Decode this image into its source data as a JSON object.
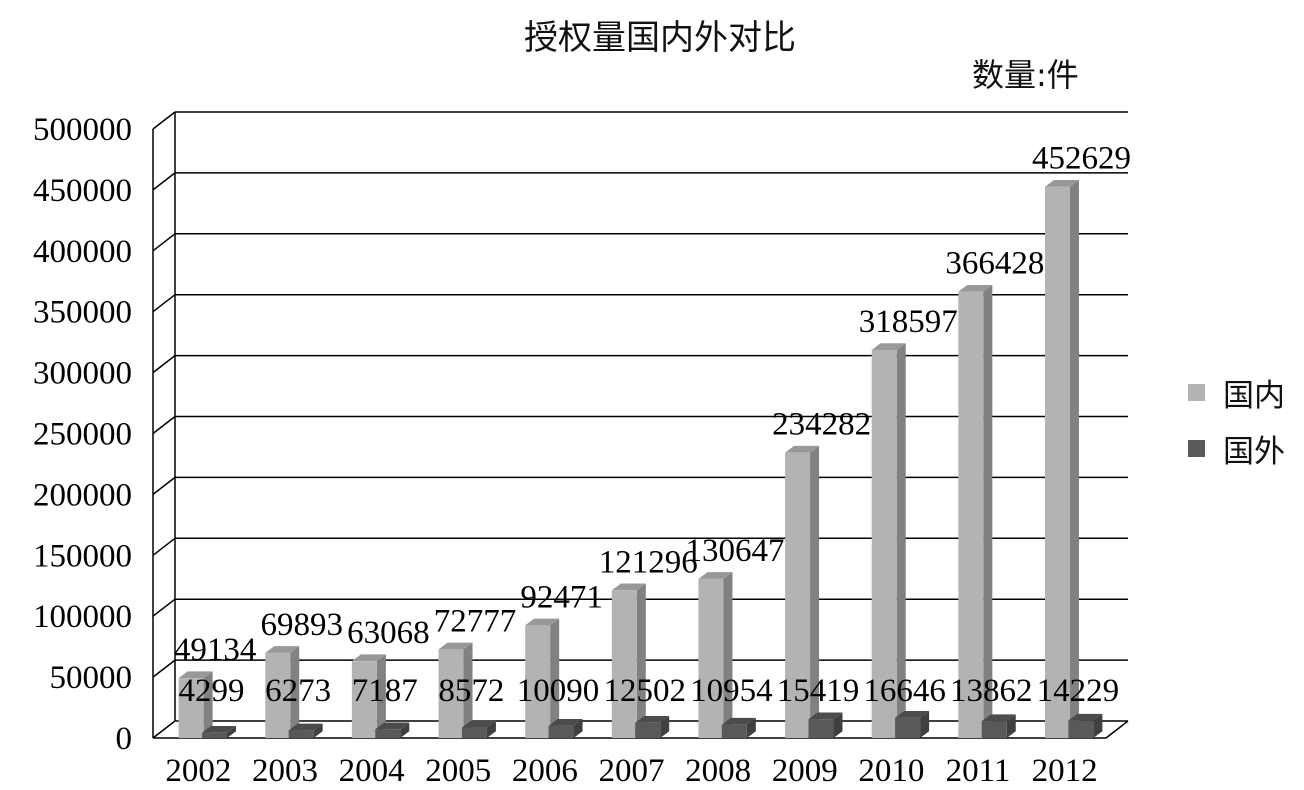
{
  "chart_data": {
    "type": "bar",
    "title": "授权量国内外对比",
    "unit_label": "数量:件",
    "categories": [
      "2002",
      "2003",
      "2004",
      "2005",
      "2006",
      "2007",
      "2008",
      "2009",
      "2010",
      "2011",
      "2012"
    ],
    "series": [
      {
        "name": "国内",
        "values": [
          49134,
          69893,
          63068,
          72777,
          92471,
          121296,
          130647,
          234282,
          318597,
          366428,
          452629
        ],
        "color": "#b3b3b3"
      },
      {
        "name": "国外",
        "values": [
          4299,
          6273,
          7187,
          8572,
          10090,
          12502,
          10954,
          15419,
          16646,
          13862,
          14229
        ],
        "color": "#595959"
      }
    ],
    "ylim": [
      0,
      500000
    ],
    "y_ticks": [
      "0",
      "50000",
      "100000",
      "150000",
      "200000",
      "250000",
      "300000",
      "350000",
      "400000",
      "450000",
      "500000"
    ],
    "grid": true,
    "three_d": true,
    "legend_position": "right"
  }
}
